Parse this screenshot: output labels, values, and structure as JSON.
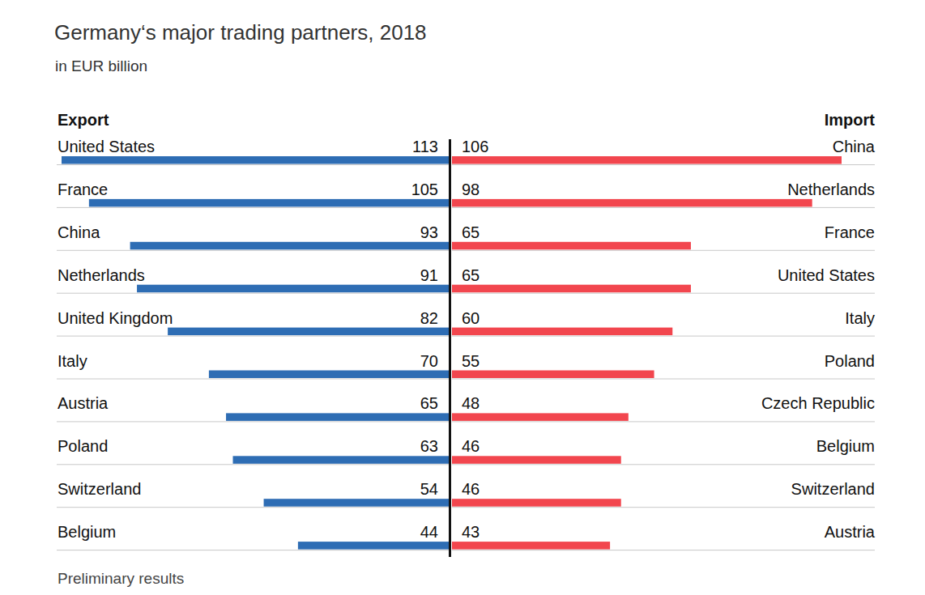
{
  "title": "Germany‘s major trading partners, 2018",
  "subtitle": "in EUR billion",
  "note": "Preliminary results",
  "chart_data": [
    {
      "type": "bar",
      "orientation": "horizontal",
      "title": "Export",
      "categories": [
        "United States",
        "France",
        "China",
        "Netherlands",
        "United Kingdom",
        "Italy",
        "Austria",
        "Poland",
        "Switzerland",
        "Belgium"
      ],
      "values": [
        113,
        105,
        93,
        91,
        82,
        70,
        65,
        63,
        54,
        44
      ],
      "color": "#2e6db4",
      "xlim": [
        0,
        113
      ],
      "data_labels": true,
      "tick_labels": false
    },
    {
      "type": "bar",
      "orientation": "horizontal",
      "title": "Import",
      "categories": [
        "China",
        "Netherlands",
        "France",
        "United States",
        "Italy",
        "Poland",
        "Czech Republic",
        "Belgium",
        "Switzerland",
        "Austria"
      ],
      "values": [
        106,
        98,
        65,
        65,
        60,
        55,
        48,
        46,
        46,
        43
      ],
      "color": "#f2464e",
      "xlim": [
        0,
        106
      ],
      "data_labels": true,
      "tick_labels": false
    }
  ]
}
